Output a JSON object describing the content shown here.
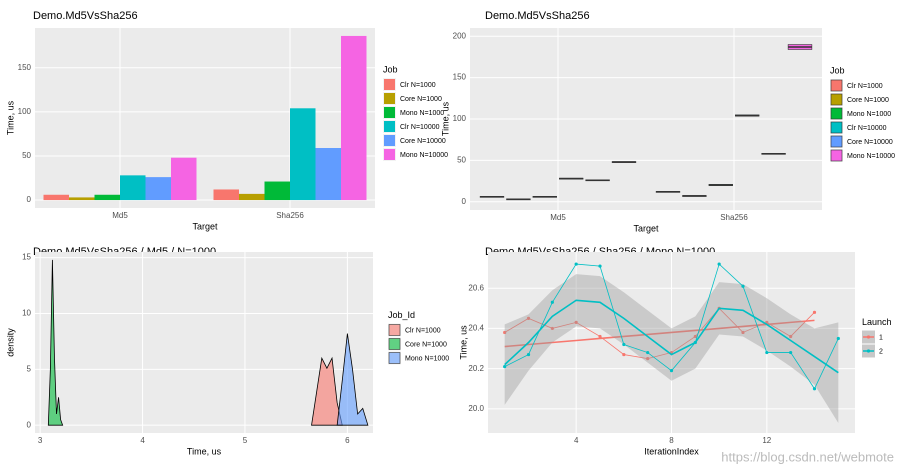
{
  "chart_data": [
    {
      "type": "bar",
      "title": "Demo.Md5VsSha256",
      "x_label": "Target",
      "y_label": "Time, us",
      "legend_title": "Job",
      "categories": [
        "Md5",
        "Sha256"
      ],
      "series": [
        {
          "name": "Clr N=1000",
          "color": "#F8766D",
          "values": [
            6,
            12
          ]
        },
        {
          "name": "Core N=1000",
          "color": "#B79F00",
          "values": [
            3,
            7
          ]
        },
        {
          "name": "Mono N=1000",
          "color": "#00BA38",
          "values": [
            6,
            21
          ]
        },
        {
          "name": "Clr N=10000",
          "color": "#00BFC4",
          "values": [
            28,
            104
          ]
        },
        {
          "name": "Core N=10000",
          "color": "#619CFF",
          "values": [
            26,
            59
          ]
        },
        {
          "name": "Mono N=10000",
          "color": "#F564E3",
          "values": [
            48,
            186
          ]
        }
      ],
      "ylim": [
        -9,
        195
      ],
      "yticks": [
        0,
        50,
        100,
        150
      ],
      "grid": true
    },
    {
      "type": "box",
      "title": "Demo.Md5VsSha256",
      "x_label": "Target",
      "y_label": "Time, us",
      "legend_title": "Job",
      "categories": [
        "Md5",
        "Sha256"
      ],
      "series": [
        {
          "name": "Clr N=1000",
          "color": "#F8766D",
          "q1": [
            5.5,
            11.5
          ],
          "median": [
            6,
            12
          ],
          "q3": [
            6.5,
            12.5
          ]
        },
        {
          "name": "Core N=1000",
          "color": "#B79F00",
          "q1": [
            2.5,
            6.5
          ],
          "median": [
            3,
            7
          ],
          "q3": [
            3.5,
            7.5
          ]
        },
        {
          "name": "Mono N=1000",
          "color": "#00BA38",
          "q1": [
            5.5,
            19.5
          ],
          "median": [
            6,
            20
          ],
          "q3": [
            6.5,
            21
          ]
        },
        {
          "name": "Clr N=10000",
          "color": "#00BFC4",
          "q1": [
            27.5,
            103.5
          ],
          "median": [
            28,
            104
          ],
          "q3": [
            28.5,
            105
          ]
        },
        {
          "name": "Core N=10000",
          "color": "#619CFF",
          "q1": [
            25.5,
            57.5
          ],
          "median": [
            26,
            58
          ],
          "q3": [
            26.5,
            58.5
          ]
        },
        {
          "name": "Mono N=10000",
          "color": "#F564E3",
          "q1": [
            47.5,
            184
          ],
          "median": [
            48,
            187
          ],
          "q3": [
            48.5,
            190
          ]
        }
      ],
      "ylim": [
        -10,
        210
      ],
      "yticks": [
        0,
        50,
        100,
        150,
        200
      ],
      "grid": true
    },
    {
      "type": "density",
      "title": "Demo.Md5VsSha256 / Md5 / N=1000",
      "x_label": "Time, us",
      "y_label": "density",
      "legend_title": "Job_Id",
      "series": [
        {
          "name": "Clr N=1000",
          "color": "#F8766D",
          "x": [
            5.65,
            5.7,
            5.75,
            5.8,
            5.85,
            5.9,
            5.95
          ],
          "values": [
            0,
            3,
            6,
            5.1,
            6,
            2,
            0
          ]
        },
        {
          "name": "Core N=1000",
          "color": "#00BA38",
          "x": [
            3.08,
            3.1,
            3.12,
            3.14,
            3.16,
            3.18,
            3.2,
            3.22
          ],
          "values": [
            0,
            5,
            14.8,
            6,
            1,
            2.5,
            0.5,
            0
          ]
        },
        {
          "name": "Mono N=1000",
          "color": "#619CFF",
          "x": [
            5.9,
            5.95,
            6.0,
            6.05,
            6.1,
            6.15,
            6.2
          ],
          "values": [
            0,
            4,
            8.2,
            5,
            1,
            1.5,
            0
          ]
        }
      ],
      "xlim": [
        2.95,
        6.25
      ],
      "xticks": [
        3,
        4,
        5,
        6
      ],
      "ylim": [
        -0.7,
        15.5
      ],
      "yticks": [
        0,
        5,
        10,
        15
      ],
      "grid": true
    },
    {
      "type": "line",
      "title": "Demo.Md5VsSha256 / Sha256 / Mono N=1000",
      "x_label": "IterationIndex",
      "y_label": "Time, us",
      "legend_title": "Launch",
      "x": [
        1,
        2,
        3,
        4,
        5,
        6,
        7,
        8,
        9,
        10,
        11,
        12,
        13,
        14,
        15
      ],
      "series": [
        {
          "name": "1",
          "color": "#F8766D",
          "values": [
            20.38,
            20.45,
            20.4,
            20.43,
            20.36,
            20.27,
            20.25,
            20.28,
            20.36,
            20.5,
            20.38,
            20.43,
            20.36,
            20.48,
            null
          ],
          "smooth": [
            20.31,
            20.32,
            20.33,
            20.34,
            20.35,
            20.36,
            20.37,
            20.38,
            20.39,
            20.4,
            20.41,
            20.42,
            20.43,
            20.44,
            null
          ]
        },
        {
          "name": "2",
          "color": "#00BFC4",
          "values": [
            20.21,
            20.27,
            20.53,
            20.72,
            20.71,
            20.32,
            20.28,
            20.19,
            20.33,
            20.72,
            20.61,
            20.28,
            20.28,
            20.1,
            20.35
          ],
          "smooth": [
            20.22,
            20.33,
            20.46,
            20.54,
            20.53,
            20.45,
            20.36,
            20.27,
            20.33,
            20.5,
            20.49,
            20.42,
            20.34,
            20.26,
            20.18
          ],
          "band_low": [
            20.02,
            20.19,
            20.33,
            20.41,
            20.4,
            20.32,
            20.23,
            20.14,
            20.2,
            20.37,
            20.36,
            20.29,
            20.21,
            20.12,
            19.93
          ],
          "band_high": [
            20.42,
            20.47,
            20.59,
            20.67,
            20.66,
            20.58,
            20.49,
            20.4,
            20.46,
            20.63,
            20.62,
            20.55,
            20.47,
            20.4,
            20.43
          ]
        }
      ],
      "xlim": [
        0.3,
        15.7
      ],
      "xticks": [
        4,
        8,
        12
      ],
      "ylim": [
        19.88,
        20.78
      ],
      "yticks": [
        {
          "value": 20.0,
          "label": "20.0"
        },
        {
          "value": 20.2,
          "label": "20.2"
        },
        {
          "value": 20.4,
          "label": "20.4"
        },
        {
          "value": 20.6,
          "label": "20.6"
        }
      ],
      "grid": true
    }
  ],
  "watermark": "https://blog.csdn.net/webmote"
}
